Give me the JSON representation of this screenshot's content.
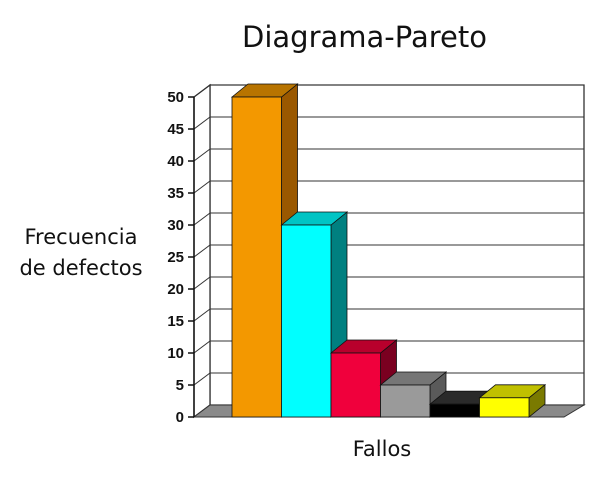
{
  "chart_data": {
    "type": "bar",
    "title": "Diagrama-Pareto",
    "ylabel": [
      "Frecuencia",
      "de defectos"
    ],
    "xlabel": "Fallos",
    "ylim": [
      0,
      50
    ],
    "yticks": [
      "0",
      "5",
      "10",
      "15",
      "20",
      "25",
      "30",
      "35",
      "40",
      "45",
      "50"
    ],
    "grid": true,
    "legend": "none",
    "three_d": true,
    "values": [
      50,
      30,
      10,
      5,
      2,
      3
    ],
    "colors": [
      "#f39800",
      "#00ffff",
      "#f0003c",
      "#9a9a9a",
      "#000000",
      "#ffff00"
    ],
    "side_colors": [
      "#9a5800",
      "#008080",
      "#7a0020",
      "#5a5a5a",
      "#000000",
      "#7a7a00"
    ],
    "top_colors": [
      "#b87400",
      "#00c4c4",
      "#b8002c",
      "#767676",
      "#2a2a2a",
      "#c0c000"
    ]
  }
}
